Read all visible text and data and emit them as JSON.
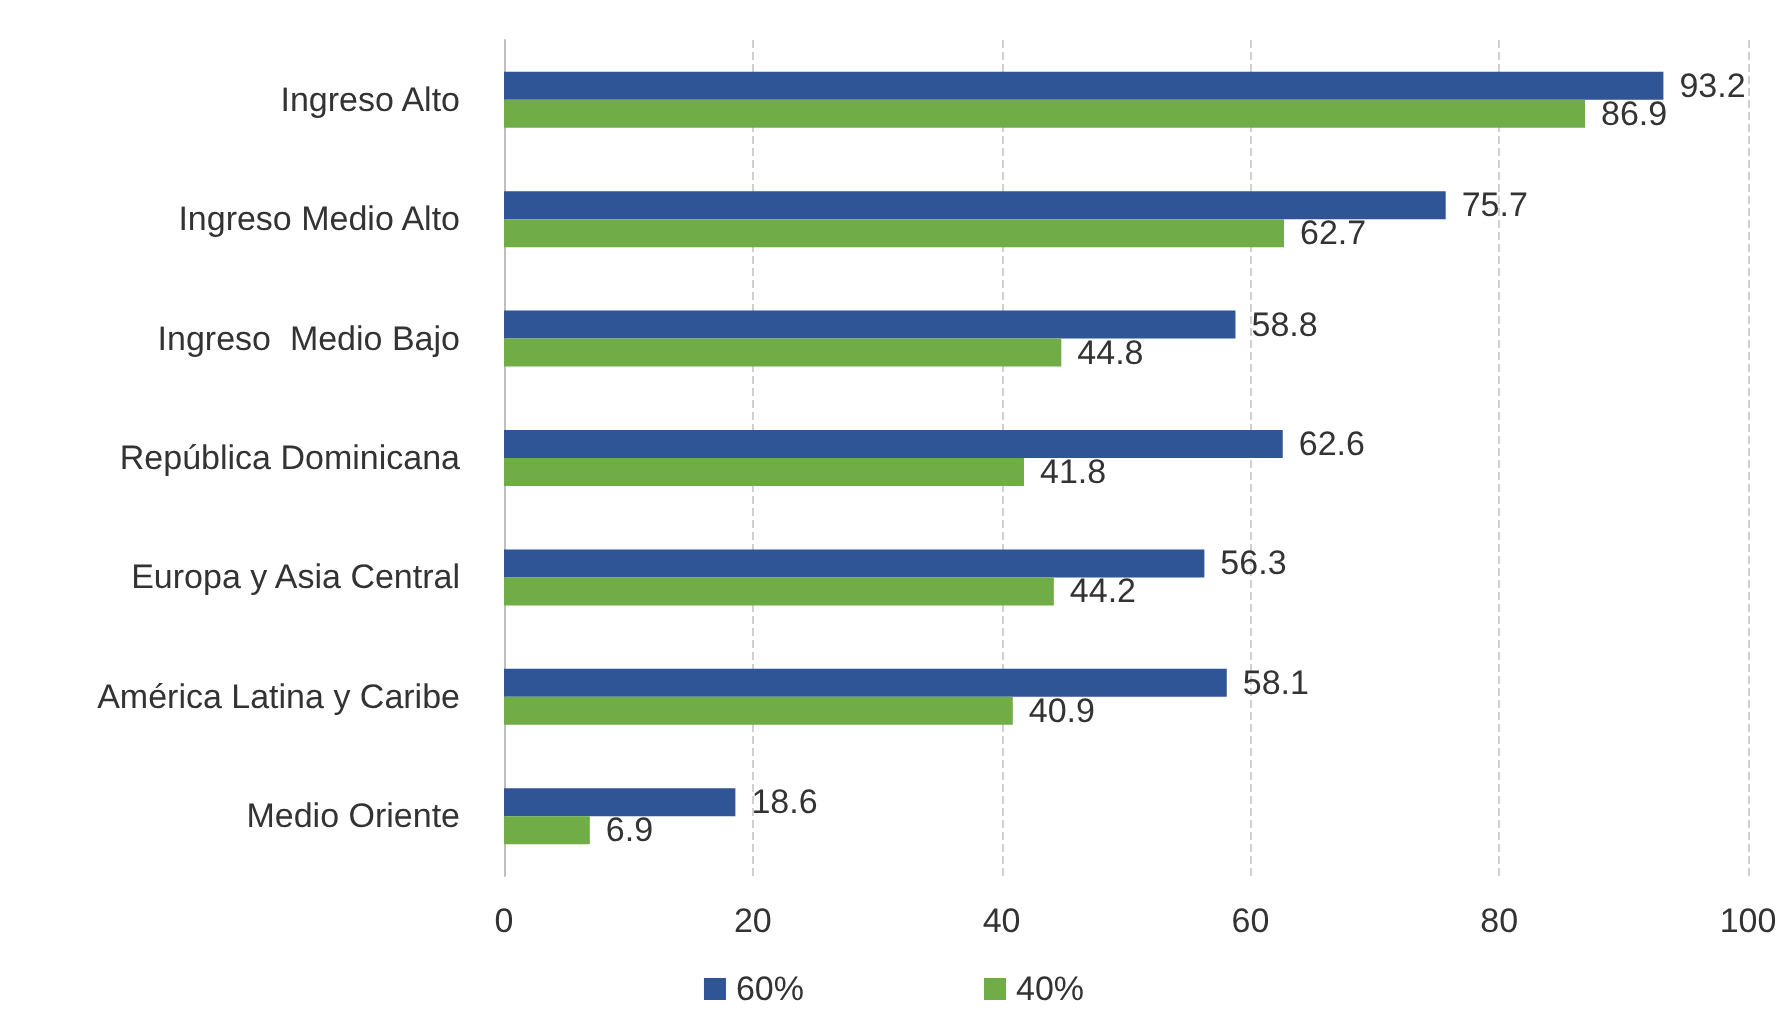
{
  "chart_data": {
    "type": "bar",
    "orientation": "horizontal",
    "categories": [
      "Ingreso Alto",
      "Ingreso Medio Alto",
      "Ingreso  Medio Bajo",
      "República Dominicana",
      "Europa y Asia Central",
      "América Latina y Caribe",
      "Medio Oriente"
    ],
    "series": [
      {
        "name": "60%",
        "color": "#2f5597",
        "values": [
          93.2,
          75.7,
          58.8,
          62.6,
          56.3,
          58.1,
          18.6
        ]
      },
      {
        "name": "40%",
        "color": "#70ad47",
        "values": [
          86.9,
          62.7,
          44.8,
          41.8,
          44.2,
          40.9,
          6.9
        ]
      }
    ],
    "xlim": [
      0,
      100
    ],
    "xticks": [
      0,
      20,
      40,
      60,
      80,
      100
    ],
    "grid": "x",
    "legend": "bottom",
    "data_labels": true
  }
}
